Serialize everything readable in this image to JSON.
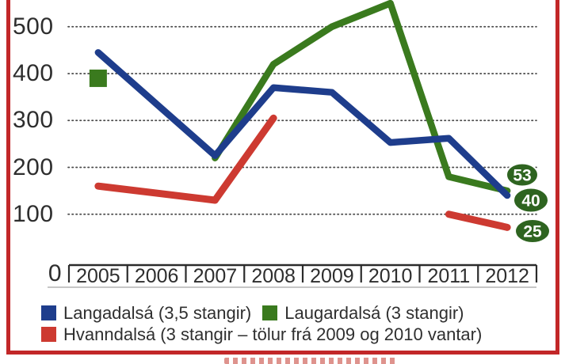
{
  "chart_data": {
    "type": "line",
    "title": "",
    "categories": [
      "2005",
      "2006",
      "2007",
      "2008",
      "2009",
      "2010",
      "2011",
      "2012"
    ],
    "series": [
      {
        "name": "Langadalsá (3,5 stangir)",
        "color": "#1e3d8c",
        "values": [
          445,
          335,
          225,
          370,
          360,
          253,
          262,
          140
        ]
      },
      {
        "name": "Laugardalsá (3 stangir)",
        "color": "#3a7a1e",
        "values": [
          390,
          null,
          220,
          420,
          500,
          550,
          180,
          150
        ]
      },
      {
        "name": "Hvanndalsá (3 stangir – tölur frá 2009 og 2010 vantar)",
        "color": "#cd3a31",
        "values": [
          160,
          145,
          130,
          305,
          null,
          null,
          100,
          72
        ]
      }
    ],
    "yticks": [
      500,
      400,
      300,
      200,
      100
    ],
    "ytick_labels": [
      "500",
      "400",
      "300",
      "200",
      "100"
    ],
    "origin_label": "0",
    "ylim": [
      0,
      560
    ],
    "grid": "dotted-horizontal",
    "legend_position": "bottom-left",
    "end_badges": [
      {
        "text": "53"
      },
      {
        "text": "40"
      },
      {
        "text": "25"
      }
    ]
  },
  "legend": {
    "items": [
      {
        "label": "Langadalsá (3,5 stangir)",
        "color": "#1e3d8c"
      },
      {
        "label": "Laugardalsá (3 stangir)",
        "color": "#3a7a1e"
      },
      {
        "label": "Hvanndalsá (3 stangir – tölur frá 2009 og 2010 vantar)",
        "color": "#cd3a31"
      }
    ]
  },
  "colors": {
    "frame": "#c22728",
    "badge_fill": "#2e6420",
    "badge_text": "#ffffff",
    "axis": "#2b2b2b",
    "grid_dots": "#4a4a4a",
    "tick_text": "#2e2e2e"
  }
}
